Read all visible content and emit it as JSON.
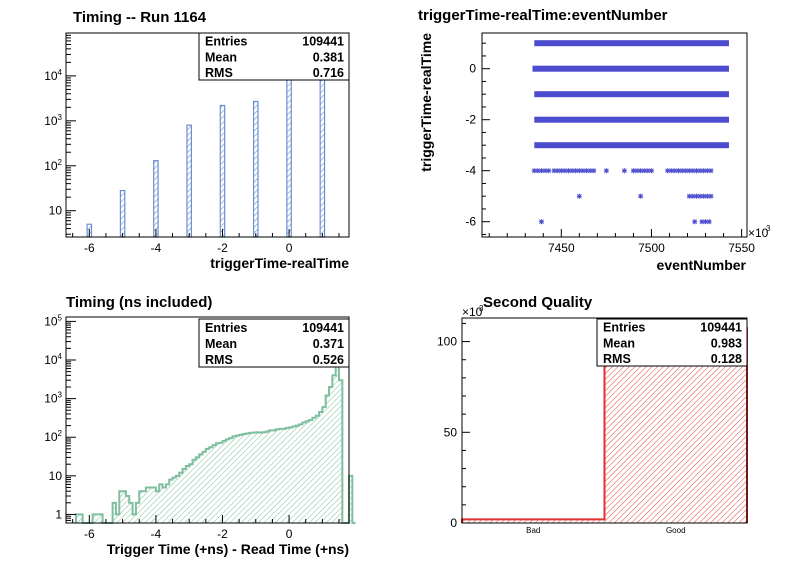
{
  "chart_data": [
    {
      "type": "bar",
      "title": "Timing -- Run 1164",
      "xlabel": "triggerTime-realTime",
      "ylabel": "",
      "yscale": "log",
      "xlim": [
        -6.7,
        1.8
      ],
      "ylim": [
        2.6,
        90000
      ],
      "xticks": [
        "-6",
        "-4",
        "-2",
        "0"
      ],
      "yticks": [
        "10",
        "10^2",
        "10^3",
        "10^4"
      ],
      "color": "#6a8fd0",
      "x": [
        -6,
        -5,
        -4,
        -3,
        -2,
        -1,
        0,
        1
      ],
      "values": [
        5,
        28,
        130,
        800,
        2200,
        2700,
        50000,
        54000
      ],
      "stats": [
        {
          "label": "Entries",
          "value": "109441"
        },
        {
          "label": "Mean",
          "value": "0.381"
        },
        {
          "label": "RMS",
          "value": "0.716"
        }
      ]
    },
    {
      "type": "scatter",
      "title": "triggerTime-realTime:eventNumber",
      "xlabel": "eventNumber",
      "ylabel": "triggerTime-realTime",
      "xlim": [
        7406,
        7553
      ],
      "ylim": [
        -6.6,
        1.4
      ],
      "xticks": [
        "7450",
        "7500",
        "7550"
      ],
      "x_multiplier": "×10",
      "x_multiplier_exp": "3",
      "yticks": [
        "-6",
        "-4",
        "-2",
        "0"
      ],
      "color": "#4c4ccf",
      "bands": [
        {
          "y": 1,
          "x_range": [
            7435,
            7543
          ]
        },
        {
          "y": 0,
          "x_range": [
            7434,
            7543
          ]
        },
        {
          "y": -1,
          "x_range": [
            7435,
            7543
          ]
        },
        {
          "y": -2,
          "x_range": [
            7435,
            7543
          ]
        },
        {
          "y": -3,
          "x_range": [
            7435,
            7543
          ]
        }
      ],
      "points": [
        {
          "x": 7435,
          "y": -4
        },
        {
          "x": 7437,
          "y": -4
        },
        {
          "x": 7439,
          "y": -4
        },
        {
          "x": 7441,
          "y": -4
        },
        {
          "x": 7443,
          "y": -4
        },
        {
          "x": 7446,
          "y": -4
        },
        {
          "x": 7448,
          "y": -4
        },
        {
          "x": 7450,
          "y": -4
        },
        {
          "x": 7452,
          "y": -4
        },
        {
          "x": 7454,
          "y": -4
        },
        {
          "x": 7456,
          "y": -4
        },
        {
          "x": 7458,
          "y": -4
        },
        {
          "x": 7460,
          "y": -4
        },
        {
          "x": 7462,
          "y": -4
        },
        {
          "x": 7464,
          "y": -4
        },
        {
          "x": 7466,
          "y": -4
        },
        {
          "x": 7468,
          "y": -4
        },
        {
          "x": 7475,
          "y": -4
        },
        {
          "x": 7485,
          "y": -4
        },
        {
          "x": 7490,
          "y": -4
        },
        {
          "x": 7492,
          "y": -4
        },
        {
          "x": 7494,
          "y": -4
        },
        {
          "x": 7496,
          "y": -4
        },
        {
          "x": 7498,
          "y": -4
        },
        {
          "x": 7500,
          "y": -4
        },
        {
          "x": 7509,
          "y": -4
        },
        {
          "x": 7511,
          "y": -4
        },
        {
          "x": 7513,
          "y": -4
        },
        {
          "x": 7515,
          "y": -4
        },
        {
          "x": 7517,
          "y": -4
        },
        {
          "x": 7519,
          "y": -4
        },
        {
          "x": 7521,
          "y": -4
        },
        {
          "x": 7523,
          "y": -4
        },
        {
          "x": 7525,
          "y": -4
        },
        {
          "x": 7527,
          "y": -4
        },
        {
          "x": 7529,
          "y": -4
        },
        {
          "x": 7531,
          "y": -4
        },
        {
          "x": 7533,
          "y": -4
        },
        {
          "x": 7460,
          "y": -5
        },
        {
          "x": 7494,
          "y": -5
        },
        {
          "x": 7521,
          "y": -5
        },
        {
          "x": 7523,
          "y": -5
        },
        {
          "x": 7525,
          "y": -5
        },
        {
          "x": 7527,
          "y": -5
        },
        {
          "x": 7529,
          "y": -5
        },
        {
          "x": 7531,
          "y": -5
        },
        {
          "x": 7533,
          "y": -5
        },
        {
          "x": 7439,
          "y": -6
        },
        {
          "x": 7524,
          "y": -6
        },
        {
          "x": 7528,
          "y": -6
        },
        {
          "x": 7530,
          "y": -6
        },
        {
          "x": 7532,
          "y": -6
        }
      ]
    },
    {
      "type": "area",
      "title": "Timing (ns included)",
      "xlabel": "Trigger Time (+ns) - Read Time (+ns)",
      "ylabel": "",
      "yscale": "log",
      "xlim": [
        -6.7,
        1.8
      ],
      "ylim": [
        0.6,
        130000
      ],
      "xticks": [
        "-6",
        "-4",
        "-2",
        "0"
      ],
      "yticks": [
        "1",
        "10",
        "10^2",
        "10^3",
        "10^4",
        "10^5"
      ],
      "color": "#7fbf9f",
      "bin_width": 0.1,
      "bin_start": -6.4,
      "values": [
        1,
        1,
        0,
        0,
        0,
        1,
        1,
        1,
        0,
        0,
        0,
        2,
        1,
        4,
        4,
        3,
        2,
        1,
        2,
        4,
        4,
        5,
        5,
        5,
        4,
        6,
        5,
        6,
        8,
        9,
        10,
        12,
        15,
        18,
        20,
        26,
        30,
        36,
        42,
        50,
        55,
        62,
        70,
        72,
        80,
        88,
        95,
        105,
        110,
        115,
        120,
        125,
        130,
        132,
        135,
        132,
        135,
        140,
        150,
        150,
        160,
        165,
        165,
        175,
        180,
        190,
        200,
        215,
        240,
        260,
        280,
        320,
        360,
        450,
        600,
        1200,
        2000,
        4000,
        80000,
        3000,
        0,
        0,
        10,
        0
      ],
      "stats": [
        {
          "label": "Entries",
          "value": "109441"
        },
        {
          "label": "Mean",
          "value": "0.371"
        },
        {
          "label": "RMS",
          "value": "0.526"
        }
      ]
    },
    {
      "type": "bar",
      "title": "Second Quality",
      "xlabel": "",
      "ylabel": "",
      "categories": [
        "Bad",
        "Good"
      ],
      "values": [
        2,
        107.5
      ],
      "ylim": [
        0,
        113
      ],
      "yticks": [
        "0",
        "50",
        "100"
      ],
      "y_multiplier": "×10",
      "y_multiplier_exp": "3",
      "color": "#e03030",
      "stats": [
        {
          "label": "Entries",
          "value": "109441"
        },
        {
          "label": "Mean",
          "value": "0.983"
        },
        {
          "label": "RMS",
          "value": "0.128"
        }
      ]
    }
  ]
}
